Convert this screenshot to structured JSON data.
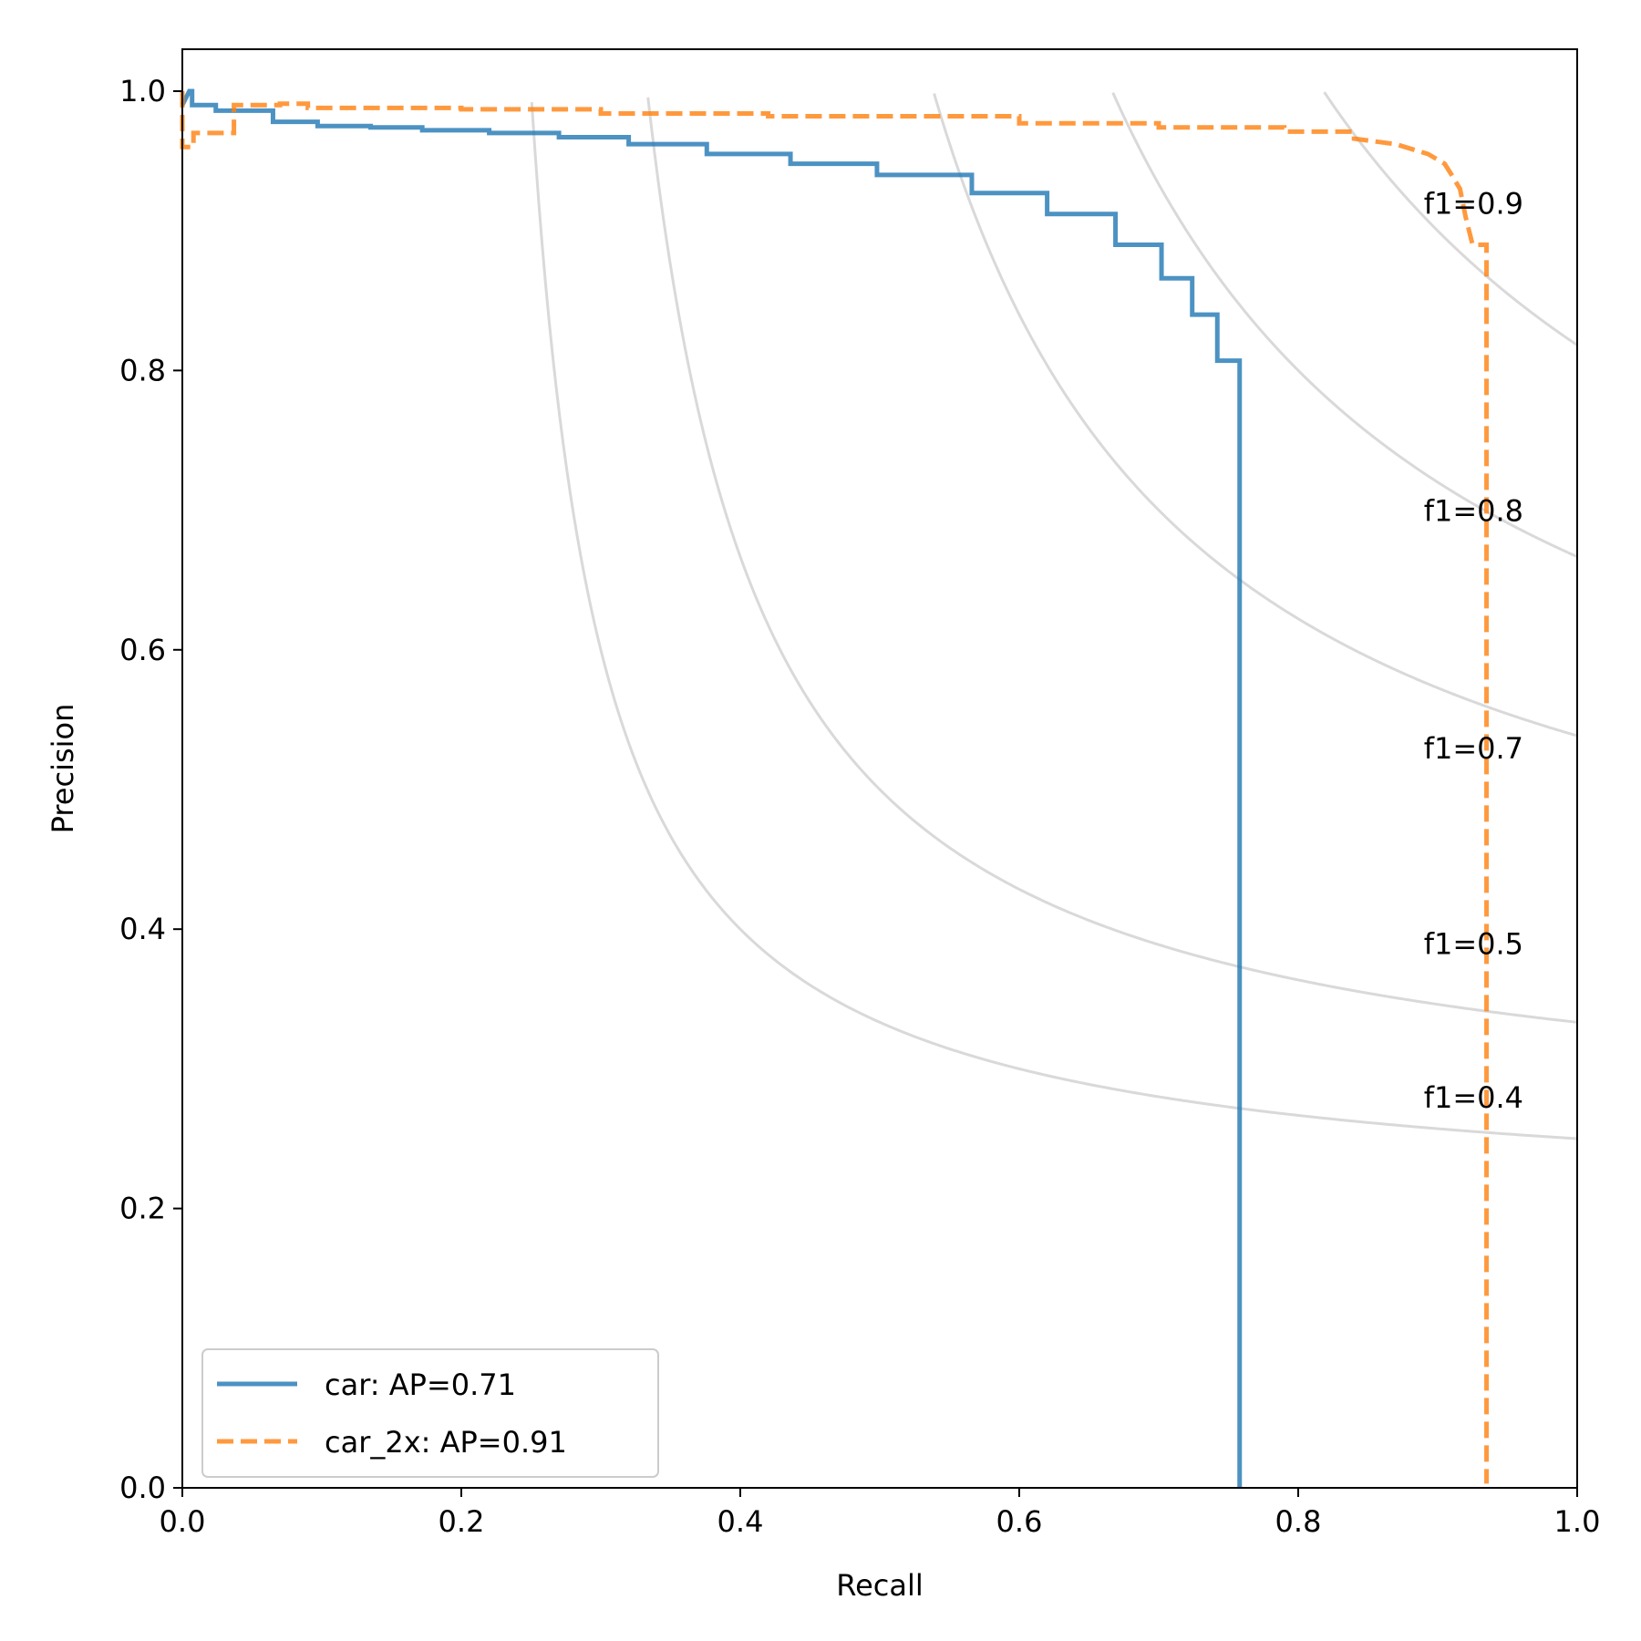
{
  "chart_data": {
    "type": "line",
    "title": "",
    "xlabel": "Recall",
    "ylabel": "Precision",
    "xlim": [
      0.0,
      1.0
    ],
    "ylim": [
      0.0,
      1.03
    ],
    "grid": false,
    "legend_position": "lower-left",
    "x_ticks": [
      {
        "value": 0.0,
        "label": "0.0"
      },
      {
        "value": 0.2,
        "label": "0.2"
      },
      {
        "value": 0.4,
        "label": "0.4"
      },
      {
        "value": 0.6,
        "label": "0.6"
      },
      {
        "value": 0.8,
        "label": "0.8"
      },
      {
        "value": 1.0,
        "label": "1.0"
      }
    ],
    "y_ticks": [
      {
        "value": 0.0,
        "label": "0.0"
      },
      {
        "value": 0.2,
        "label": "0.2"
      },
      {
        "value": 0.4,
        "label": "0.4"
      },
      {
        "value": 0.6,
        "label": "0.6"
      },
      {
        "value": 0.8,
        "label": "0.8"
      },
      {
        "value": 1.0,
        "label": "1.0"
      }
    ],
    "iso_f1": [
      {
        "f1": 0.4,
        "label": "f1=0.4",
        "label_y": 0.28
      },
      {
        "f1": 0.5,
        "label": "f1=0.5",
        "label_y": 0.39
      },
      {
        "f1": 0.7,
        "label": "f1=0.7",
        "label_y": 0.53
      },
      {
        "f1": 0.8,
        "label": "f1=0.8",
        "label_y": 0.7
      },
      {
        "f1": 0.9,
        "label": "f1=0.9",
        "label_y": 0.92
      }
    ],
    "series": [
      {
        "name": "car",
        "label": "car: AP=0.71",
        "color": "#1f77b4",
        "style": "solid",
        "points": [
          [
            0.0,
            0.99
          ],
          [
            0.005,
            1.0
          ],
          [
            0.007,
            1.0
          ],
          [
            0.007,
            0.99
          ],
          [
            0.024,
            0.99
          ],
          [
            0.024,
            0.986
          ],
          [
            0.065,
            0.986
          ],
          [
            0.065,
            0.978
          ],
          [
            0.097,
            0.978
          ],
          [
            0.097,
            0.975
          ],
          [
            0.135,
            0.975
          ],
          [
            0.135,
            0.974
          ],
          [
            0.172,
            0.974
          ],
          [
            0.172,
            0.972
          ],
          [
            0.22,
            0.972
          ],
          [
            0.22,
            0.97
          ],
          [
            0.27,
            0.97
          ],
          [
            0.27,
            0.967
          ],
          [
            0.32,
            0.967
          ],
          [
            0.32,
            0.962
          ],
          [
            0.376,
            0.962
          ],
          [
            0.376,
            0.955
          ],
          [
            0.436,
            0.955
          ],
          [
            0.436,
            0.948
          ],
          [
            0.498,
            0.948
          ],
          [
            0.498,
            0.94
          ],
          [
            0.566,
            0.94
          ],
          [
            0.566,
            0.927
          ],
          [
            0.62,
            0.927
          ],
          [
            0.62,
            0.912
          ],
          [
            0.669,
            0.912
          ],
          [
            0.669,
            0.89
          ],
          [
            0.702,
            0.89
          ],
          [
            0.702,
            0.866
          ],
          [
            0.724,
            0.866
          ],
          [
            0.724,
            0.84
          ],
          [
            0.742,
            0.84
          ],
          [
            0.742,
            0.807
          ],
          [
            0.758,
            0.807
          ],
          [
            0.758,
            0.0
          ]
        ]
      },
      {
        "name": "car_2x",
        "label": "car_2x: AP=0.91",
        "color": "#ff7f0e",
        "style": "dashed",
        "points": [
          [
            0.0,
            1.0
          ],
          [
            0.0,
            0.96
          ],
          [
            0.008,
            0.96
          ],
          [
            0.008,
            0.97
          ],
          [
            0.037,
            0.97
          ],
          [
            0.037,
            0.99
          ],
          [
            0.07,
            0.99
          ],
          [
            0.07,
            0.991
          ],
          [
            0.09,
            0.991
          ],
          [
            0.09,
            0.988
          ],
          [
            0.2,
            0.988
          ],
          [
            0.2,
            0.987
          ],
          [
            0.3,
            0.987
          ],
          [
            0.3,
            0.984
          ],
          [
            0.42,
            0.984
          ],
          [
            0.42,
            0.982
          ],
          [
            0.6,
            0.982
          ],
          [
            0.6,
            0.977
          ],
          [
            0.7,
            0.977
          ],
          [
            0.7,
            0.974
          ],
          [
            0.79,
            0.974
          ],
          [
            0.79,
            0.971
          ],
          [
            0.84,
            0.971
          ],
          [
            0.84,
            0.966
          ],
          [
            0.87,
            0.962
          ],
          [
            0.893,
            0.955
          ],
          [
            0.905,
            0.948
          ],
          [
            0.91,
            0.94
          ],
          [
            0.916,
            0.93
          ],
          [
            0.92,
            0.91
          ],
          [
            0.925,
            0.89
          ],
          [
            0.935,
            0.89
          ],
          [
            0.935,
            0.003
          ]
        ]
      }
    ]
  }
}
